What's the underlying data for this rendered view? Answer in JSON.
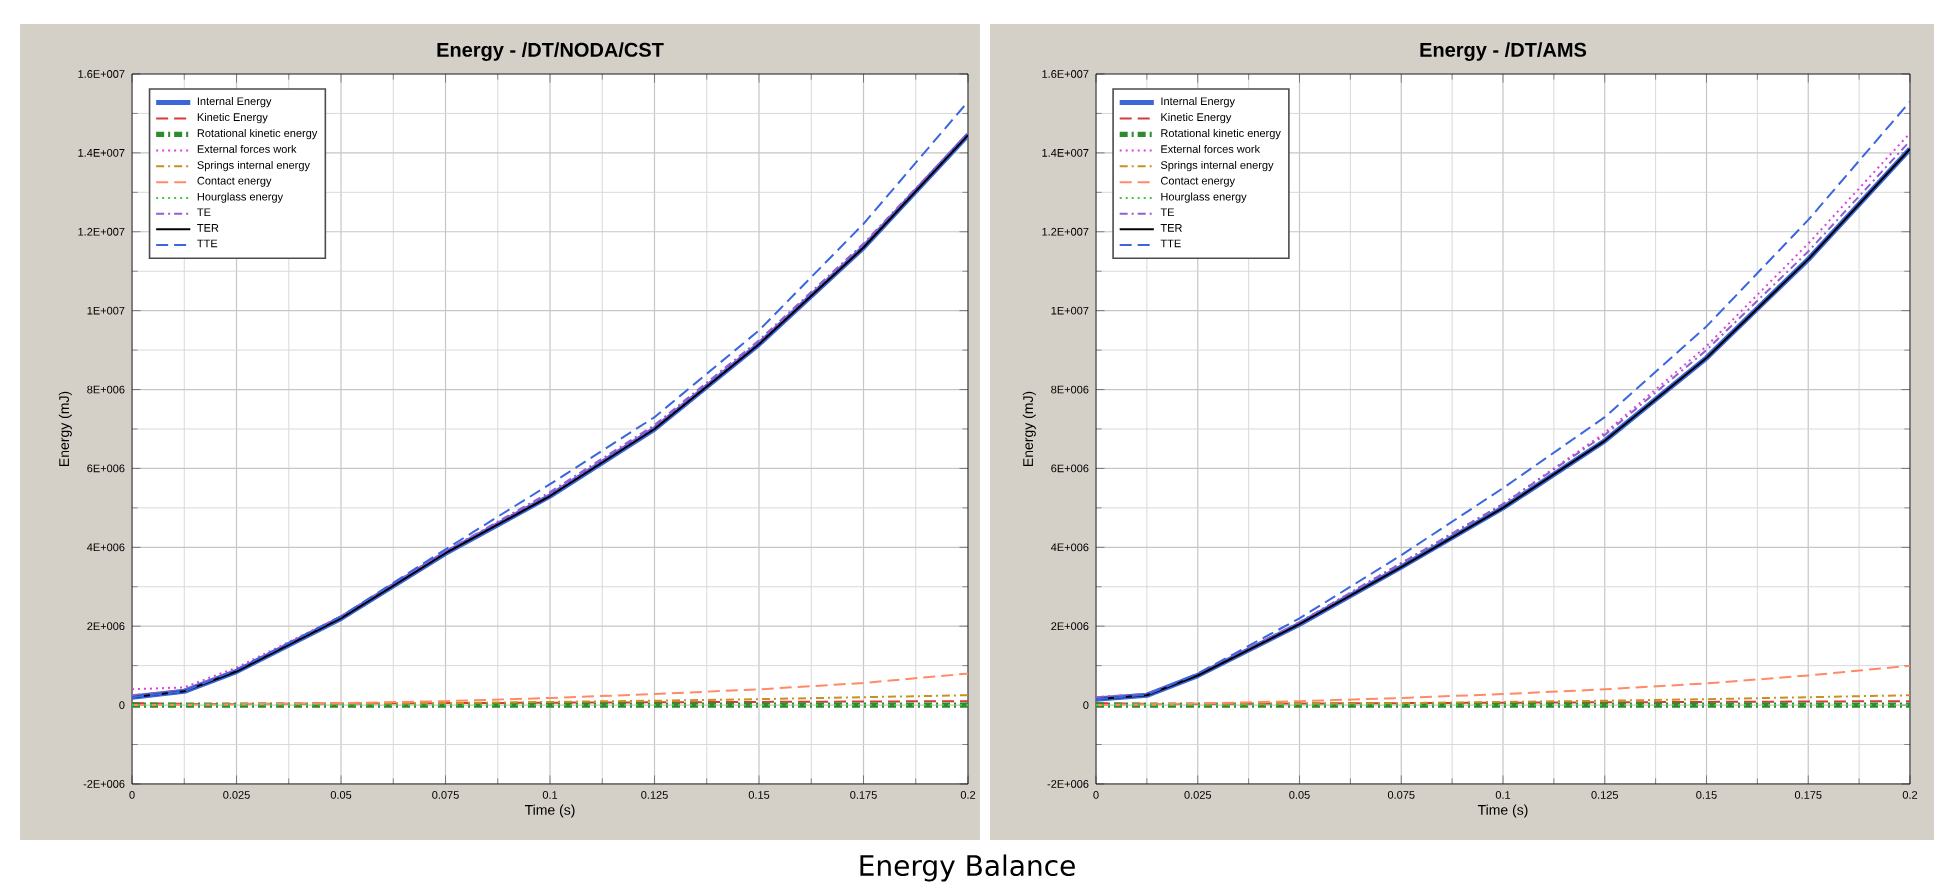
{
  "chart_data": [
    {
      "type": "line",
      "title": "Energy - /DT/NODA/CST",
      "xlabel": "Time (s)",
      "ylabel": "Energy (mJ)",
      "annotations": [
        "Energy Balance"
      ],
      "legend": "top left",
      "grid": true,
      "xlim": [
        0,
        0.2
      ],
      "xticks": [
        0,
        0.025,
        0.05,
        0.075,
        0.1,
        0.125,
        0.15,
        0.175,
        0.2
      ],
      "ylim": [
        -2000000,
        16000000
      ],
      "yticks": [
        {
          "value": -2000000,
          "label": "-2E+006"
        },
        0,
        {
          "value": 2000000,
          "label": "2E+006"
        },
        {
          "value": 4000000,
          "label": "4E+006"
        },
        {
          "value": 6000000,
          "label": "6E+006"
        },
        {
          "value": 8000000,
          "label": "8E+006"
        },
        {
          "value": 10000000,
          "label": "1E+007"
        },
        {
          "value": 12000000,
          "label": "1.2E+007"
        },
        {
          "value": 14000000,
          "label": "1.4E+007"
        },
        {
          "value": 16000000,
          "label": "1.6E+007"
        }
      ],
      "x": [
        0,
        0.0125,
        0.025,
        0.05,
        0.075,
        0.1,
        0.125,
        0.15,
        0.175,
        0.2
      ],
      "series": [
        {
          "name": "Internal Energy",
          "color": "#3a66d8",
          "line_style": "solid",
          "values": [
            200000,
            350000,
            850000,
            2200000,
            3850000,
            5300000,
            7000000,
            9150000,
            11600000,
            14450000
          ]
        },
        {
          "name": "Kinetic Energy",
          "color": "#d83a3a",
          "line_style": "dashed",
          "values": [
            50000,
            30000,
            30000,
            40000,
            50000,
            60000,
            70000,
            80000,
            90000,
            100000
          ]
        },
        {
          "name": "Rotational kinetic energy",
          "color": "#2e8b2e",
          "line_style": "dashdot",
          "values": [
            0,
            0,
            0,
            0,
            0,
            0,
            0,
            0,
            0,
            0
          ]
        },
        {
          "name": "External forces work",
          "color": "#e040e0",
          "line_style": "dotted",
          "values": [
            400000,
            450000,
            950000,
            2250000,
            3900000,
            5350000,
            7050000,
            9200000,
            11650000,
            14500000
          ]
        },
        {
          "name": "Springs internal energy",
          "color": "#c8901e",
          "line_style": "dashdot",
          "values": [
            0,
            0,
            10000,
            30000,
            50000,
            80000,
            110000,
            150000,
            200000,
            250000
          ]
        },
        {
          "name": "Contact energy",
          "color": "#ff8a66",
          "line_style": "dashed",
          "values": [
            0,
            10000,
            20000,
            50000,
            100000,
            180000,
            280000,
            400000,
            560000,
            800000
          ]
        },
        {
          "name": "Hourglass energy",
          "color": "#44c444",
          "line_style": "dotted",
          "values": [
            0,
            0,
            0,
            0,
            0,
            0,
            0,
            0,
            0,
            0
          ]
        },
        {
          "name": "TE",
          "color": "#9060d0",
          "line_style": "dashdot",
          "values": [
            250000,
            380000,
            900000,
            2250000,
            3900000,
            5400000,
            7100000,
            9250000,
            11700000,
            14500000
          ]
        },
        {
          "name": "TER",
          "color": "#000000",
          "line_style": "solid",
          "values": [
            200000,
            350000,
            850000,
            2200000,
            3850000,
            5300000,
            7000000,
            9150000,
            11600000,
            14450000
          ]
        },
        {
          "name": "TTE",
          "color": "#3a66e0",
          "line_style": "dashed",
          "values": [
            200000,
            350000,
            900000,
            2250000,
            3950000,
            5600000,
            7300000,
            9500000,
            12200000,
            15300000
          ]
        }
      ]
    },
    {
      "type": "line",
      "title": "Energy - /DT/AMS",
      "xlabel": "Time (s)",
      "ylabel": "Energy (mJ)",
      "legend": "top left",
      "grid": true,
      "xlim": [
        0,
        0.2
      ],
      "xticks": [
        0,
        0.025,
        0.05,
        0.075,
        0.1,
        0.125,
        0.15,
        0.175,
        0.2
      ],
      "ylim": [
        -2000000,
        16000000
      ],
      "yticks": [
        {
          "value": -2000000,
          "label": "-2E+006"
        },
        0,
        {
          "value": 2000000,
          "label": "2E+006"
        },
        {
          "value": 4000000,
          "label": "4E+006"
        },
        {
          "value": 6000000,
          "label": "6E+006"
        },
        {
          "value": 8000000,
          "label": "8E+006"
        },
        {
          "value": 10000000,
          "label": "1E+007"
        },
        {
          "value": 12000000,
          "label": "1.2E+007"
        },
        {
          "value": 14000000,
          "label": "1.4E+007"
        },
        {
          "value": 16000000,
          "label": "1.6E+007"
        }
      ],
      "x": [
        0,
        0.0125,
        0.025,
        0.05,
        0.075,
        0.1,
        0.125,
        0.15,
        0.175,
        0.2
      ],
      "series": [
        {
          "name": "Internal Energy",
          "color": "#3a66d8",
          "line_style": "solid",
          "values": [
            150000,
            250000,
            750000,
            2050000,
            3500000,
            5000000,
            6700000,
            8800000,
            11300000,
            14100000
          ]
        },
        {
          "name": "Kinetic Energy",
          "color": "#d83a3a",
          "line_style": "dashed",
          "values": [
            50000,
            30000,
            30000,
            40000,
            50000,
            60000,
            70000,
            80000,
            90000,
            100000
          ]
        },
        {
          "name": "Rotational kinetic energy",
          "color": "#2e8b2e",
          "line_style": "dashdot",
          "values": [
            0,
            0,
            0,
            0,
            0,
            0,
            0,
            0,
            0,
            0
          ]
        },
        {
          "name": "External forces work",
          "color": "#e040e0",
          "line_style": "dotted",
          "values": [
            200000,
            280000,
            780000,
            2100000,
            3600000,
            5100000,
            6900000,
            9100000,
            11700000,
            14500000
          ]
        },
        {
          "name": "Springs internal energy",
          "color": "#c8901e",
          "line_style": "dashdot",
          "values": [
            0,
            0,
            10000,
            30000,
            50000,
            80000,
            110000,
            150000,
            200000,
            250000
          ]
        },
        {
          "name": "Contact energy",
          "color": "#ff8a66",
          "line_style": "dashed",
          "values": [
            0,
            20000,
            40000,
            100000,
            180000,
            280000,
            400000,
            550000,
            750000,
            1000000
          ]
        },
        {
          "name": "Hourglass energy",
          "color": "#44c444",
          "line_style": "dotted",
          "values": [
            0,
            0,
            0,
            0,
            0,
            0,
            0,
            0,
            0,
            0
          ]
        },
        {
          "name": "TE",
          "color": "#9060d0",
          "line_style": "dashdot",
          "values": [
            200000,
            280000,
            780000,
            2100000,
            3600000,
            5100000,
            6850000,
            9000000,
            11500000,
            14300000
          ]
        },
        {
          "name": "TER",
          "color": "#000000",
          "line_style": "solid",
          "values": [
            150000,
            250000,
            750000,
            2050000,
            3500000,
            5000000,
            6700000,
            8800000,
            11300000,
            14100000
          ]
        },
        {
          "name": "TTE",
          "color": "#3a66e0",
          "line_style": "dashed",
          "values": [
            150000,
            260000,
            800000,
            2200000,
            3800000,
            5500000,
            7300000,
            9600000,
            12300000,
            15300000
          ]
        }
      ]
    }
  ]
}
